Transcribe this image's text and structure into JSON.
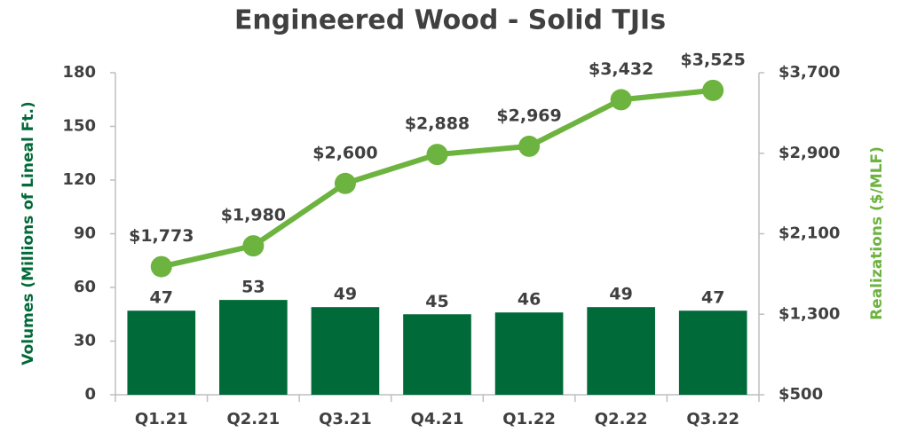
{
  "chart_data": {
    "type": "bar+line",
    "title": "Engineered Wood - Solid TJIs",
    "categories": [
      "Q1.21",
      "Q2.21",
      "Q3.21",
      "Q4.21",
      "Q1.22",
      "Q2.22",
      "Q3.22"
    ],
    "series": [
      {
        "name": "Volumes",
        "type": "bar",
        "color": "#006a38",
        "values": [
          47,
          53,
          49,
          45,
          46,
          49,
          47
        ]
      },
      {
        "name": "Realizations",
        "type": "line",
        "axis": "y2",
        "color": "#6db33f",
        "values": [
          1773,
          1980,
          2600,
          2888,
          2969,
          3432,
          3525
        ],
        "value_labels": [
          "$1,773",
          "$1,980",
          "$2,600",
          "$2,888",
          "$2,969",
          "$3,432",
          "$3,525"
        ]
      }
    ],
    "ylabel": "Volumes (Millions of Lineal Ft.)",
    "y2label": "Realizations ($/MLF)",
    "ylim": [
      0,
      180
    ],
    "yticks": [
      0,
      30,
      60,
      90,
      120,
      150,
      180
    ],
    "y2lim": [
      500,
      3700
    ],
    "y2ticks": [
      {
        "value": 500,
        "label": "$500"
      },
      {
        "value": 1300,
        "label": "$1,300"
      },
      {
        "value": 2100,
        "label": "$2,100"
      },
      {
        "value": 2900,
        "label": "$2,900"
      },
      {
        "value": 3700,
        "label": "$3,700"
      }
    ],
    "grid": false
  }
}
